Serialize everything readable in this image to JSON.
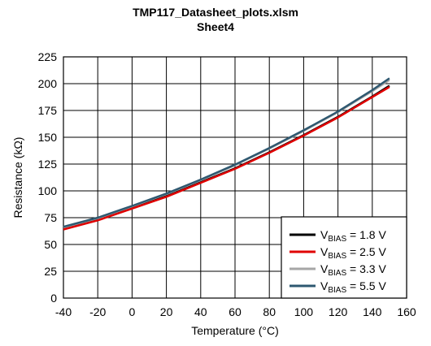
{
  "chart_data": {
    "type": "line",
    "title": "TMP117_Datasheet_plots.xlsm",
    "subtitle": "Sheet4",
    "xlabel": "Temperature (°C)",
    "ylabel": "Resistance (kΩ)",
    "xlim": [
      -40,
      160
    ],
    "ylim": [
      0,
      225
    ],
    "xticks": [
      -40,
      -20,
      0,
      20,
      40,
      60,
      80,
      100,
      120,
      140,
      160
    ],
    "yticks": [
      0,
      25,
      50,
      75,
      100,
      125,
      150,
      175,
      200,
      225
    ],
    "grid": true,
    "legend_position": "bottom-right",
    "x": [
      -40,
      -20,
      0,
      20,
      40,
      60,
      80,
      100,
      120,
      140,
      150
    ],
    "series": [
      {
        "name_main": "V",
        "name_sub": "BIAS",
        "name_rest": " = 1.8 V",
        "color": "#000000",
        "values": [
          65,
          73,
          84,
          95,
          108,
          121,
          136,
          152,
          169,
          188,
          198
        ]
      },
      {
        "name_main": "V",
        "name_sub": "BIAS",
        "name_rest": " = 2.5 V",
        "color": "#e00000",
        "values": [
          64,
          72.5,
          83.5,
          94.5,
          107.5,
          120.5,
          135.5,
          151.5,
          168.5,
          187.5,
          197
        ]
      },
      {
        "name_main": "V",
        "name_sub": "BIAS",
        "name_rest": " = 3.3 V",
        "color": "#a6a6a6",
        "values": [
          66,
          74.5,
          85.5,
          97,
          110,
          124,
          139.5,
          156,
          173.5,
          193,
          203.5
        ]
      },
      {
        "name_main": "V",
        "name_sub": "BIAS",
        "name_rest": " = 5.5 V",
        "color": "#2e5870",
        "values": [
          66.5,
          75,
          86,
          97.5,
          110.5,
          124.5,
          140,
          156.5,
          174,
          194,
          205
        ]
      }
    ]
  }
}
